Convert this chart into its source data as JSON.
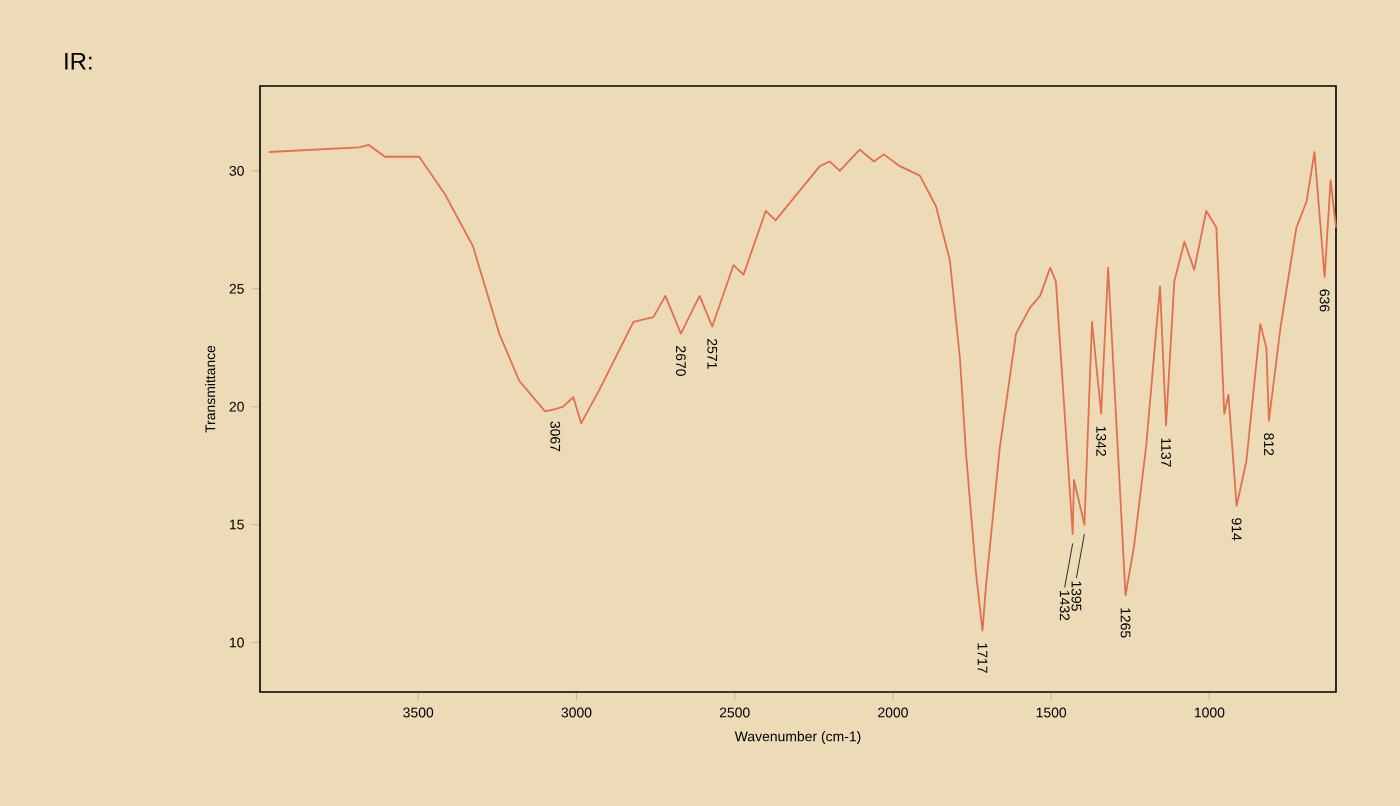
{
  "chart_data": {
    "type": "line",
    "title": "IR:",
    "xlabel": "Wavenumber (cm-1)",
    "ylabel": "Transmittance",
    "x": [
      3972,
      3687,
      3656,
      3605,
      3497,
      3415,
      3327,
      3244,
      3181,
      3099,
      3067,
      3042,
      3010,
      2985,
      2928,
      2820,
      2757,
      2719,
      2670,
      2611,
      2571,
      2504,
      2472,
      2402,
      2371,
      2231,
      2200,
      2168,
      2105,
      2060,
      2029,
      1978,
      1915,
      1864,
      1820,
      1788,
      1769,
      1738,
      1717,
      1706,
      1662,
      1611,
      1567,
      1535,
      1503,
      1485,
      1432,
      1428,
      1395,
      1371,
      1342,
      1320,
      1301,
      1265,
      1238,
      1200,
      1156,
      1137,
      1111,
      1079,
      1048,
      1010,
      978,
      953,
      940,
      914,
      883,
      839,
      820,
      812,
      775,
      725,
      693,
      668,
      636,
      617,
      600
    ],
    "series": [
      {
        "color": "#e07050",
        "values": [
          30.8,
          31.0,
          31.1,
          30.6,
          30.6,
          29.0,
          26.8,
          23.1,
          21.1,
          19.8,
          19.9,
          20.0,
          20.4,
          19.3,
          20.7,
          23.6,
          23.8,
          24.7,
          23.1,
          24.7,
          23.4,
          26.0,
          25.6,
          28.3,
          27.9,
          30.2,
          30.4,
          30.0,
          30.9,
          30.4,
          30.7,
          30.2,
          29.8,
          28.5,
          26.2,
          22.0,
          18.0,
          13.0,
          10.5,
          12.4,
          18.3,
          23.1,
          24.2,
          24.7,
          25.9,
          25.3,
          14.6,
          16.9,
          15.0,
          23.6,
          19.7,
          25.9,
          21.1,
          12.0,
          14.1,
          18.3,
          25.1,
          19.2,
          25.3,
          27.0,
          25.8,
          28.3,
          27.6,
          19.7,
          20.5,
          15.8,
          17.7,
          23.5,
          22.5,
          19.4,
          23.4,
          27.6,
          28.7,
          30.8,
          25.5,
          29.6,
          27.6
        ]
      }
    ],
    "xlim": [
      4000,
      600
    ],
    "ylim": [
      7.9,
      33.6
    ],
    "xticks": [
      3500,
      3000,
      2500,
      2000,
      1500,
      1000
    ],
    "yticks": [
      10,
      15,
      20,
      25,
      30
    ],
    "grid": false,
    "marker": "none",
    "line_style": "solid",
    "annotations": [
      {
        "text": "3067",
        "x": 3067,
        "y": 19.9
      },
      {
        "text": "2670",
        "x": 2670,
        "y": 23.1
      },
      {
        "text": "2571",
        "x": 2571,
        "y": 23.4
      },
      {
        "text": "1717",
        "x": 1717,
        "y": 10.5
      },
      {
        "text": "1432",
        "x": 1432,
        "y": 14.6
      },
      {
        "text": "1395",
        "x": 1395,
        "y": 15.0
      },
      {
        "text": "1342",
        "x": 1342,
        "y": 19.7
      },
      {
        "text": "1265",
        "x": 1265,
        "y": 12.0
      },
      {
        "text": "1137",
        "x": 1137,
        "y": 19.2
      },
      {
        "text": "914",
        "x": 914,
        "y": 15.8
      },
      {
        "text": "812",
        "x": 812,
        "y": 19.4
      },
      {
        "text": "636",
        "x": 636,
        "y": 25.5
      }
    ]
  }
}
